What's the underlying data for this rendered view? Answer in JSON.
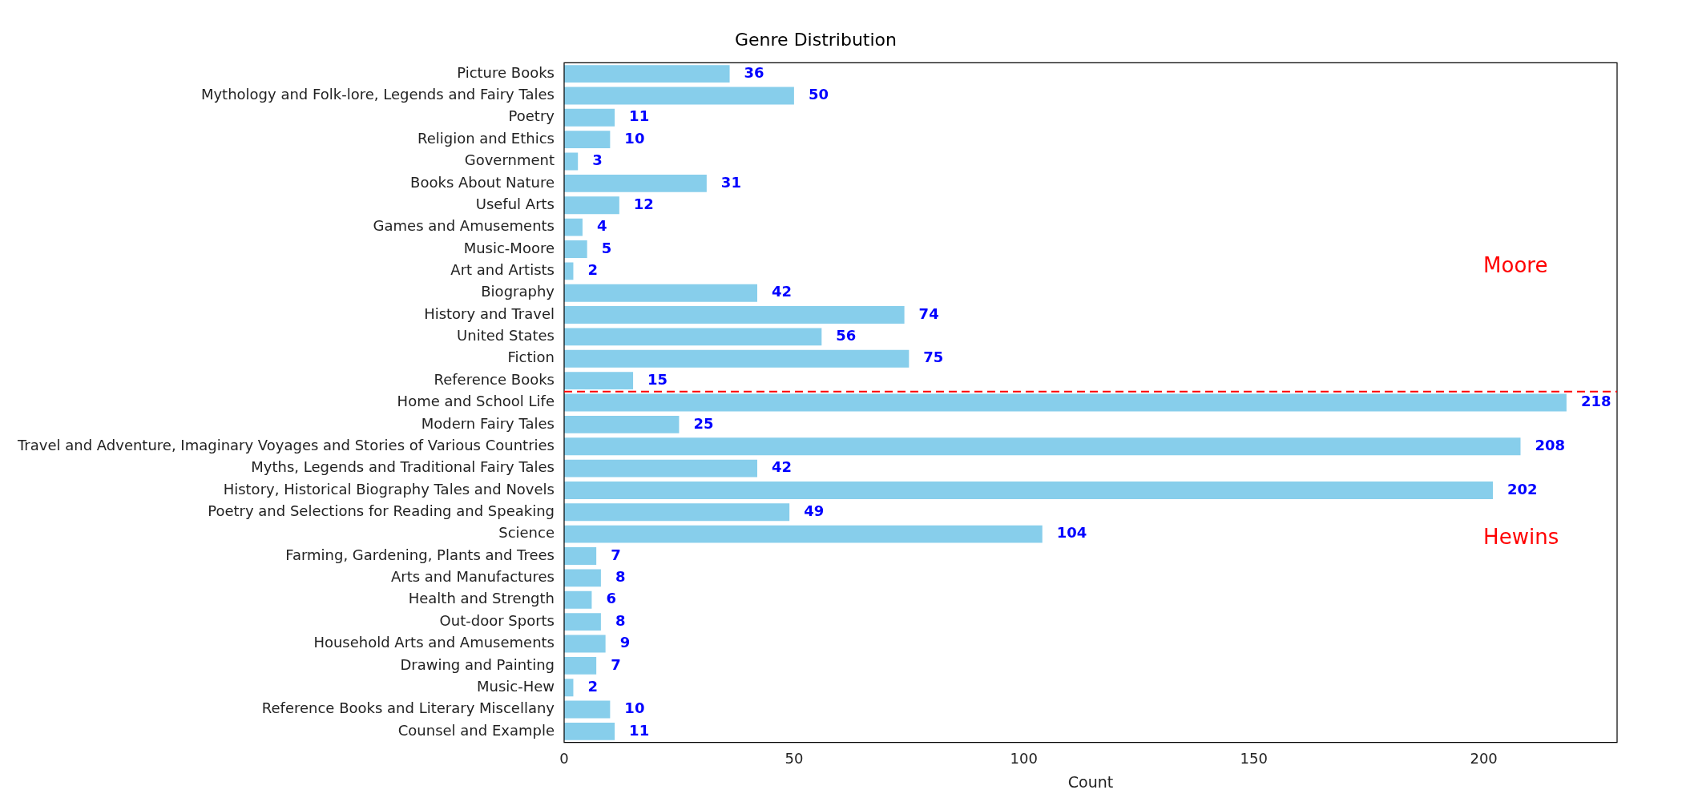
{
  "chart_data": {
    "type": "bar",
    "orientation": "horizontal",
    "title": "Genre Distribution",
    "xlabel": "Count",
    "categories": [
      "Picture Books",
      "Mythology and Folk-lore, Legends and Fairy Tales",
      "Poetry",
      "Religion and Ethics",
      "Government",
      "Books About Nature",
      "Useful Arts",
      "Games and Amusements",
      "Music-Moore",
      "Art and Artists",
      "Biography",
      "History and Travel",
      "United States",
      "Fiction",
      "Reference Books",
      "Home and School Life",
      "Modern Fairy Tales",
      "Travel and Adventure, Imaginary Voyages and Stories of Various Countries",
      "Myths, Legends and Traditional Fairy Tales",
      "History, Historical Biography Tales and Novels",
      "Poetry and Selections for Reading and Speaking",
      "Science",
      "Farming, Gardening, Plants and Trees",
      "Arts and Manufactures",
      "Health and Strength",
      "Out-door Sports",
      "Household Arts and Amusements",
      "Drawing and Painting",
      "Music-Hew",
      "Reference Books and Literary Miscellany",
      "Counsel and Example"
    ],
    "values": [
      36,
      50,
      11,
      10,
      3,
      31,
      12,
      4,
      5,
      2,
      42,
      74,
      56,
      75,
      15,
      218,
      25,
      208,
      42,
      202,
      49,
      104,
      7,
      8,
      6,
      8,
      9,
      7,
      2,
      10,
      11
    ],
    "color": "#87ceeb",
    "data_labels": true,
    "xlim": [
      0,
      229
    ],
    "xticks": [
      0,
      50,
      100,
      150,
      200
    ],
    "annotations": [
      "Moore",
      "Hewins"
    ],
    "grid": false,
    "legend": false
  }
}
